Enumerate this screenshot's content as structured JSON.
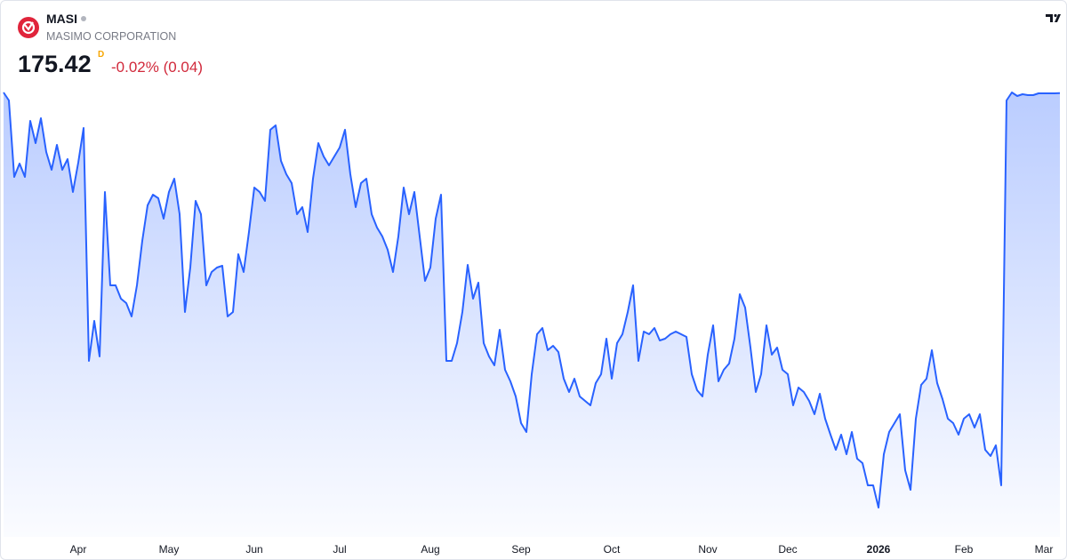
{
  "header": {
    "symbol": "MASI",
    "name": "MASIMO CORPORATION",
    "price": "175.42",
    "interval": "D",
    "change": "-0.02% (0.04)"
  },
  "chart_data": {
    "type": "area",
    "color": "#2962ff",
    "ylim": [
      120,
      180
    ],
    "categories": [
      null,
      null,
      null,
      null,
      null,
      null,
      null,
      null,
      null,
      null,
      null,
      null,
      null,
      null,
      "Apr",
      null,
      null,
      null,
      null,
      null,
      null,
      null,
      null,
      null,
      null,
      null,
      null,
      null,
      null,
      null,
      null,
      "May",
      null,
      null,
      null,
      null,
      null,
      null,
      null,
      null,
      null,
      null,
      null,
      null,
      null,
      null,
      null,
      "Jun",
      null,
      null,
      null,
      null,
      null,
      null,
      null,
      null,
      null,
      null,
      null,
      null,
      null,
      null,
      null,
      "Jul",
      null,
      null,
      null,
      null,
      null,
      null,
      null,
      null,
      null,
      null,
      null,
      null,
      null,
      null,
      null,
      null,
      "Aug",
      null,
      null,
      null,
      null,
      null,
      null,
      null,
      null,
      null,
      null,
      null,
      null,
      null,
      null,
      null,
      null,
      "Sep",
      null,
      null,
      null,
      null,
      null,
      null,
      null,
      null,
      null,
      null,
      null,
      null,
      null,
      null,
      null,
      null,
      "Oct",
      null,
      null,
      null,
      null,
      null,
      null,
      null,
      null,
      null,
      null,
      null,
      null,
      null,
      null,
      null,
      null,
      null,
      "Nov",
      null,
      null,
      null,
      null,
      null,
      null,
      null,
      null,
      null,
      null,
      null,
      null,
      null,
      null,
      "Dec",
      null,
      null,
      null,
      null,
      null,
      null,
      null,
      null,
      null,
      null,
      null,
      null,
      null,
      null,
      null,
      null,
      "2026",
      null,
      null,
      null,
      null,
      null,
      null,
      null,
      null,
      null,
      null,
      null,
      null,
      null,
      null,
      null,
      "Feb",
      null,
      null,
      null,
      null,
      null,
      null,
      null,
      null,
      null,
      null,
      null,
      null,
      null,
      null,
      "Mar",
      null,
      null,
      null
    ],
    "values": [
      175.5,
      174.6,
      166.0,
      167.5,
      166.0,
      172.3,
      169.8,
      172.6,
      168.8,
      166.8,
      169.6,
      166.8,
      168.0,
      164.3,
      167.6,
      171.5,
      145.3,
      149.8,
      145.8,
      164.3,
      153.8,
      153.8,
      152.3,
      151.8,
      150.3,
      153.8,
      158.8,
      162.8,
      164.0,
      163.6,
      161.3,
      164.3,
      165.8,
      161.8,
      150.8,
      155.8,
      163.3,
      161.8,
      153.8,
      155.3,
      155.8,
      156.0,
      150.3,
      150.8,
      157.3,
      155.3,
      159.8,
      164.8,
      164.3,
      163.3,
      171.3,
      171.8,
      167.8,
      166.3,
      165.3,
      161.8,
      162.6,
      159.8,
      165.8,
      169.8,
      168.3,
      167.3,
      168.3,
      169.3,
      171.3,
      166.3,
      162.6,
      165.3,
      165.8,
      161.8,
      160.3,
      159.3,
      157.8,
      155.3,
      159.3,
      164.8,
      161.8,
      164.3,
      159.3,
      154.3,
      155.8,
      161.3,
      164.0,
      145.3,
      145.3,
      147.3,
      150.8,
      156.1,
      152.3,
      154.1,
      147.3,
      145.8,
      144.8,
      148.8,
      144.3,
      143.0,
      141.3,
      138.3,
      137.3,
      143.8,
      148.3,
      149.0,
      146.5,
      147.0,
      146.3,
      143.3,
      141.8,
      143.3,
      141.3,
      140.8,
      140.3,
      142.8,
      143.8,
      147.8,
      143.3,
      147.3,
      148.3,
      150.8,
      153.8,
      145.3,
      148.6,
      148.3,
      149.0,
      147.6,
      147.8,
      148.3,
      148.6,
      148.3,
      148.0,
      143.8,
      142.0,
      141.3,
      146.0,
      149.3,
      143.0,
      144.3,
      145.0,
      147.8,
      152.8,
      151.3,
      146.8,
      141.8,
      143.8,
      149.3,
      146.0,
      146.8,
      144.3,
      143.8,
      140.3,
      142.3,
      141.8,
      140.8,
      139.3,
      141.6,
      138.8,
      137.0,
      135.3,
      137.0,
      134.8,
      137.3,
      134.3,
      133.8,
      131.3,
      131.3,
      128.8,
      134.8,
      137.3,
      138.3,
      139.3,
      133.0,
      130.8,
      138.8,
      142.6,
      143.3,
      146.5,
      142.8,
      141.0,
      138.8,
      138.3,
      137.0,
      138.8,
      139.3,
      137.8,
      139.3,
      135.3,
      134.6,
      135.8,
      131.3,
      174.6,
      175.5,
      175.1,
      175.3,
      175.2,
      175.2,
      175.4,
      175.4,
      175.4,
      175.4,
      175.42
    ]
  }
}
